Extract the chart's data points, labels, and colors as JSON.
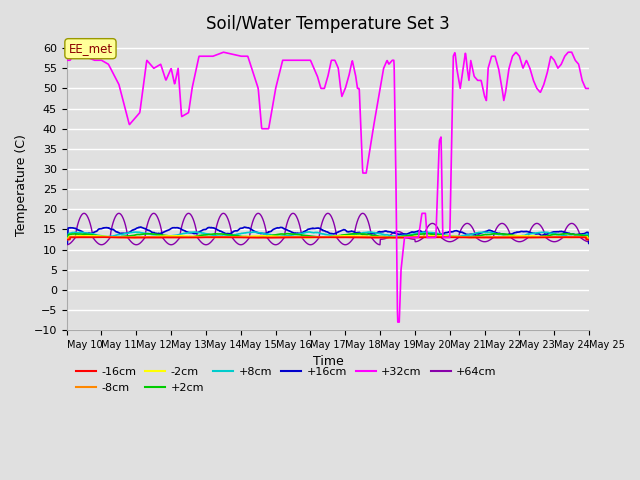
{
  "title": "Soil/Water Temperature Set 3",
  "xlabel": "Time",
  "ylabel": "Temperature (C)",
  "ylim": [
    -10,
    62
  ],
  "yticks": [
    -10,
    -5,
    0,
    5,
    10,
    15,
    20,
    25,
    30,
    35,
    40,
    45,
    50,
    55,
    60
  ],
  "xtick_labels": [
    "May 10",
    "May 11",
    "May 12",
    "May 13",
    "May 14",
    "May 15",
    "May 16",
    "May 17",
    "May 18",
    "May 19",
    "May 20",
    "May 21",
    "May 22",
    "May 23",
    "May 24",
    "May 25"
  ],
  "bg_color": "#e0e0e0",
  "grid_color": "white",
  "series": {
    "minus16cm": {
      "color": "#ff0000",
      "label": "-16cm"
    },
    "minus8cm": {
      "color": "#ff8800",
      "label": "-8cm"
    },
    "minus2cm": {
      "color": "#ffff00",
      "label": "-2cm"
    },
    "plus2cm": {
      "color": "#00cc00",
      "label": "+2cm"
    },
    "plus8cm": {
      "color": "#00cccc",
      "label": "+8cm"
    },
    "plus16cm": {
      "color": "#0000cc",
      "label": "+16cm"
    },
    "plus32cm": {
      "color": "#ff00ff",
      "label": "+32cm"
    },
    "plus64cm": {
      "color": "#8800aa",
      "label": "+64cm"
    }
  }
}
